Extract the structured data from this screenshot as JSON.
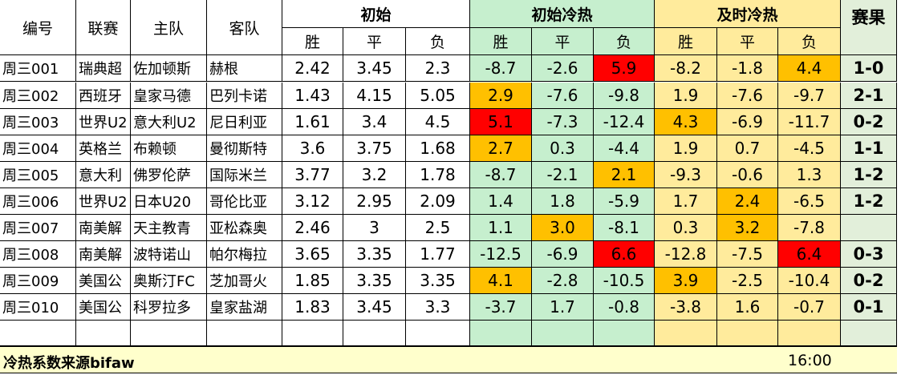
{
  "headers": {
    "id": "编号",
    "league": "联赛",
    "home": "主队",
    "away": "客队",
    "initial": "初始",
    "initial_hotcold": "初始冷热",
    "live_hotcold": "及时冷热",
    "result": "赛果",
    "win": "胜",
    "draw": "平",
    "lose": "负"
  },
  "rows": [
    {
      "id": "周三001",
      "league": "瑞典超",
      "home": "佐加顿斯",
      "away": "赫根",
      "o": [
        "2.42",
        "3.45",
        "2.3"
      ],
      "ih": [
        "-8.7",
        "-2.6",
        "5.9"
      ],
      "lh": [
        "-8.2",
        "-1.8",
        "4.4"
      ],
      "result": "1-0"
    },
    {
      "id": "周三002",
      "league": "西班牙",
      "home": "皇家马德",
      "away": "巴列卡诺",
      "o": [
        "1.43",
        "4.15",
        "5.05"
      ],
      "ih": [
        "2.9",
        "-7.6",
        "-9.8"
      ],
      "lh": [
        "1.9",
        "-7.6",
        "-9.7"
      ],
      "result": "2-1"
    },
    {
      "id": "周三003",
      "league": "世界U2",
      "home": "意大利U2",
      "away": "尼日利亚",
      "o": [
        "1.61",
        "3.4",
        "4.5"
      ],
      "ih": [
        "5.1",
        "-7.3",
        "-12.4"
      ],
      "lh": [
        "4.3",
        "-6.9",
        "-11.7"
      ],
      "result": "0-2"
    },
    {
      "id": "周三004",
      "league": "英格兰",
      "home": "布赖顿",
      "away": "曼彻斯特",
      "o": [
        "3.6",
        "3.75",
        "1.68"
      ],
      "ih": [
        "2.7",
        "0.3",
        "-4.4"
      ],
      "lh": [
        "1.9",
        "0.7",
        "-4.5"
      ],
      "result": "1-1"
    },
    {
      "id": "周三005",
      "league": "意大利",
      "home": "佛罗伦萨",
      "away": "国际米兰",
      "o": [
        "3.77",
        "3.2",
        "1.78"
      ],
      "ih": [
        "-8.7",
        "-2.1",
        "2.1"
      ],
      "lh": [
        "-9.3",
        "-0.6",
        "1.3"
      ],
      "result": "1-2"
    },
    {
      "id": "周三006",
      "league": "世界U2",
      "home": "日本U20",
      "away": "哥伦比亚",
      "o": [
        "3.12",
        "2.95",
        "2.09"
      ],
      "ih": [
        "1.4",
        "1.8",
        "-5.9"
      ],
      "lh": [
        "1.7",
        "2.4",
        "-6.5"
      ],
      "result": "1-2"
    },
    {
      "id": "周三007",
      "league": "南美解",
      "home": "天主教青",
      "away": "亚松森奥",
      "o": [
        "2.46",
        "3",
        "2.5"
      ],
      "ih": [
        "1.1",
        "3.0",
        "-8.1"
      ],
      "lh": [
        "0.3",
        "3.2",
        "-7.8"
      ],
      "result": ""
    },
    {
      "id": "周三008",
      "league": "南美解",
      "home": "波特诺山",
      "away": "帕尔梅拉",
      "o": [
        "3.65",
        "3.35",
        "1.77"
      ],
      "ih": [
        "-12.5",
        "-6.9",
        "6.6"
      ],
      "lh": [
        "-12.8",
        "-7.5",
        "6.4"
      ],
      "result": "0-3"
    },
    {
      "id": "周三009",
      "league": "美国公",
      "home": "奥斯汀FC",
      "away": "芝加哥火",
      "o": [
        "1.85",
        "3.35",
        "3.35"
      ],
      "ih": [
        "4.1",
        "-2.8",
        "-10.5"
      ],
      "lh": [
        "3.9",
        "-2.5",
        "-10.4"
      ],
      "result": "0-2"
    },
    {
      "id": "周三010",
      "league": "美国公",
      "home": "科罗拉多",
      "away": "皇家盐湖",
      "o": [
        "1.83",
        "3.45",
        "3.3"
      ],
      "ih": [
        "-3.7",
        "1.7",
        "-0.8"
      ],
      "lh": [
        "-3.8",
        "1.6",
        "-0.7"
      ],
      "result": "0-1"
    }
  ],
  "highlights": {
    "ih": [
      [
        "",
        "",
        "red"
      ],
      [
        "orange",
        "",
        ""
      ],
      [
        "red",
        "",
        ""
      ],
      [
        "orange",
        "",
        ""
      ],
      [
        "",
        "",
        "orange"
      ],
      [
        "",
        "",
        ""
      ],
      [
        "",
        "orange",
        ""
      ],
      [
        "",
        "",
        "red"
      ],
      [
        "orange",
        "",
        ""
      ],
      [
        "",
        "",
        ""
      ]
    ],
    "lh": [
      [
        "",
        "",
        "orange"
      ],
      [
        "",
        "",
        ""
      ],
      [
        "orange",
        "",
        ""
      ],
      [
        "",
        "",
        ""
      ],
      [
        "",
        "",
        ""
      ],
      [
        "",
        "orange",
        ""
      ],
      [
        "",
        "orange",
        ""
      ],
      [
        "",
        "",
        "red"
      ],
      [
        "orange",
        "",
        ""
      ],
      [
        "",
        "",
        ""
      ]
    ]
  },
  "colors": {
    "initial_hotcold_bg": "#c6efce",
    "live_hotcold_bg": "#ffeb9c",
    "result_bg": "#e2efda",
    "orange": "#ffc000",
    "red": "#ff0000",
    "footer_bg": "#ffffcc"
  },
  "footer": {
    "label": "冷热系数来源bifaw",
    "time": "16:00"
  }
}
